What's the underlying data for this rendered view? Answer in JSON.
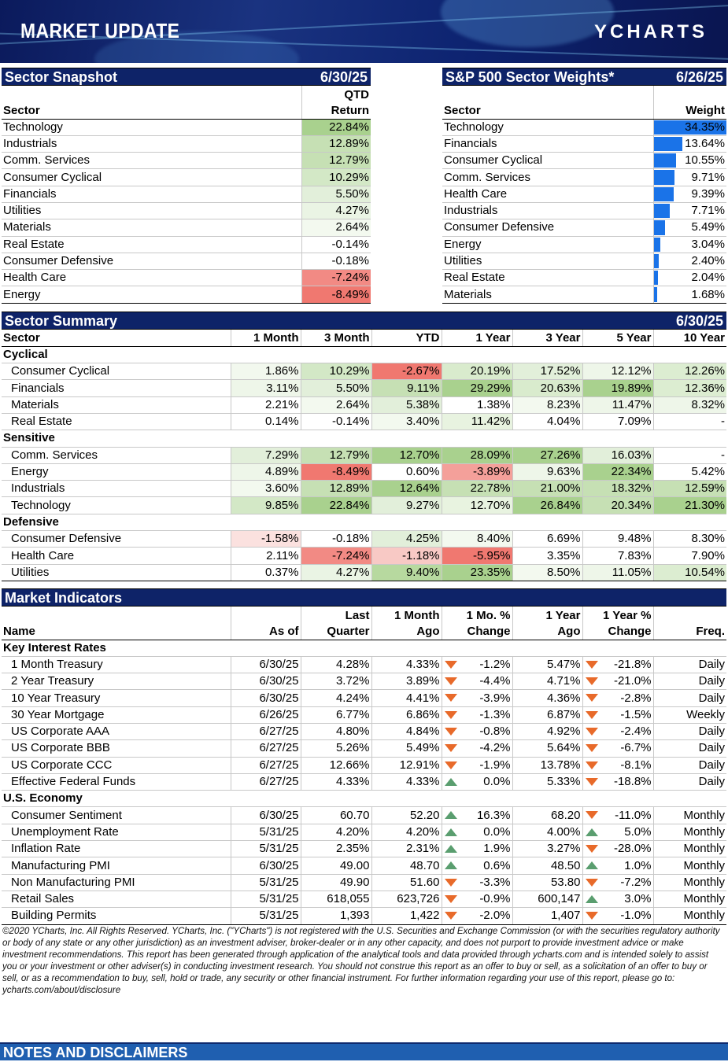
{
  "banner": {
    "title": "MARKET UPDATE",
    "logo": "YCHARTS"
  },
  "snapshot": {
    "title": "Sector Snapshot",
    "date": "6/30/25",
    "col_sector": "Sector",
    "col_return_1": "QTD",
    "col_return_2": "Return",
    "rows": [
      {
        "sector": "Technology",
        "value": "22.84%",
        "color": "#a9d18e"
      },
      {
        "sector": "Industrials",
        "value": "12.89%",
        "color": "#c6e0b4"
      },
      {
        "sector": "Comm. Services",
        "value": "12.79%",
        "color": "#c6e0b4"
      },
      {
        "sector": "Consumer Cyclical",
        "value": "10.29%",
        "color": "#d3e8c6"
      },
      {
        "sector": "Financials",
        "value": "5.50%",
        "color": "#e2efda"
      },
      {
        "sector": "Utilities",
        "value": "4.27%",
        "color": "#eaf4e4"
      },
      {
        "sector": "Materials",
        "value": "2.64%",
        "color": "#f3f9ef"
      },
      {
        "sector": "Real Estate",
        "value": "-0.14%",
        "color": "#ffffff"
      },
      {
        "sector": "Consumer Defensive",
        "value": "-0.18%",
        "color": "#ffffff"
      },
      {
        "sector": "Health Care",
        "value": "-7.24%",
        "color": "#f28a84"
      },
      {
        "sector": "Energy",
        "value": "-8.49%",
        "color": "#f07870"
      }
    ]
  },
  "weights": {
    "title": "S&P 500 Sector Weights*",
    "date": "6/26/25",
    "col_sector": "Sector",
    "col_weight": "Weight",
    "rows": [
      {
        "sector": "Technology",
        "value": "34.35%",
        "fraction": 34.35
      },
      {
        "sector": "Financials",
        "value": "13.64%",
        "fraction": 13.64
      },
      {
        "sector": "Consumer Cyclical",
        "value": "10.55%",
        "fraction": 10.55
      },
      {
        "sector": "Comm. Services",
        "value": "9.71%",
        "fraction": 9.71
      },
      {
        "sector": "Health Care",
        "value": "9.39%",
        "fraction": 9.39
      },
      {
        "sector": "Industrials",
        "value": "7.71%",
        "fraction": 7.71
      },
      {
        "sector": "Consumer Defensive",
        "value": "5.49%",
        "fraction": 5.49
      },
      {
        "sector": "Energy",
        "value": "3.04%",
        "fraction": 3.04
      },
      {
        "sector": "Utilities",
        "value": "2.40%",
        "fraction": 2.4
      },
      {
        "sector": "Real Estate",
        "value": "2.04%",
        "fraction": 2.04
      },
      {
        "sector": "Materials",
        "value": "1.68%",
        "fraction": 1.68
      }
    ]
  },
  "summary": {
    "title": "Sector Summary",
    "date": "6/30/25",
    "columns": [
      "Sector",
      "1 Month",
      "3 Month",
      "YTD",
      "1 Year",
      "3 Year",
      "5 Year",
      "10 Year"
    ],
    "groups": [
      {
        "name": "Cyclical",
        "rows": [
          {
            "sector": "Consumer Cyclical",
            "cells": [
              [
                "1.86%",
                "#f2f8ee"
              ],
              [
                "10.29%",
                "#d3e8c6"
              ],
              [
                "-2.67%",
                "#f07870"
              ],
              [
                "20.19%",
                "#d9ebcd"
              ],
              [
                "17.52%",
                "#e2efda"
              ],
              [
                "12.12%",
                "#eef6e9"
              ],
              [
                "12.26%",
                "#dcedd1"
              ]
            ]
          },
          {
            "sector": "Financials",
            "cells": [
              [
                "3.11%",
                "#eef6e9"
              ],
              [
                "5.50%",
                "#e2efda"
              ],
              [
                "9.11%",
                "#c6e0b4"
              ],
              [
                "29.29%",
                "#a9d18e"
              ],
              [
                "20.63%",
                "#d9ebcd"
              ],
              [
                "19.89%",
                "#a9d18e"
              ],
              [
                "12.36%",
                "#dcedd1"
              ]
            ]
          },
          {
            "sector": "Materials",
            "cells": [
              [
                "2.21%",
                "#ffffff"
              ],
              [
                "2.64%",
                "#f3f9ef"
              ],
              [
                "5.38%",
                "#e2efda"
              ],
              [
                "1.38%",
                "#ffffff"
              ],
              [
                "8.23%",
                "#f3f9ef"
              ],
              [
                "11.47%",
                "#eef6e9"
              ],
              [
                "8.32%",
                "#eef6e9"
              ]
            ]
          },
          {
            "sector": "Real Estate",
            "cells": [
              [
                "0.14%",
                "#ffffff"
              ],
              [
                "-0.14%",
                "#ffffff"
              ],
              [
                "3.40%",
                "#f3f9ef"
              ],
              [
                "11.42%",
                "#e8f3e0"
              ],
              [
                "4.04%",
                "#ffffff"
              ],
              [
                "7.09%",
                "#ffffff"
              ],
              [
                "-",
                "#ffffff"
              ]
            ]
          }
        ]
      },
      {
        "name": "Sensitive",
        "rows": [
          {
            "sector": "Comm. Services",
            "cells": [
              [
                "7.29%",
                "#e2efda"
              ],
              [
                "12.79%",
                "#c6e0b4"
              ],
              [
                "12.70%",
                "#a9d18e"
              ],
              [
                "28.09%",
                "#a9d18e"
              ],
              [
                "27.26%",
                "#a9d18e"
              ],
              [
                "16.03%",
                "#e2efda"
              ],
              [
                "-",
                "#ffffff"
              ]
            ]
          },
          {
            "sector": "Energy",
            "cells": [
              [
                "4.89%",
                "#eef6e9"
              ],
              [
                "-8.49%",
                "#f07870"
              ],
              [
                "0.60%",
                "#ffffff"
              ],
              [
                "-3.89%",
                "#f4a09a"
              ],
              [
                "9.63%",
                "#eef6e9"
              ],
              [
                "22.34%",
                "#a9d18e"
              ],
              [
                "5.42%",
                "#ffffff"
              ]
            ]
          },
          {
            "sector": "Industrials",
            "cells": [
              [
                "3.60%",
                "#f3f9ef"
              ],
              [
                "12.89%",
                "#c6e0b4"
              ],
              [
                "12.64%",
                "#a9d18e"
              ],
              [
                "22.78%",
                "#c6e0b4"
              ],
              [
                "21.00%",
                "#c6e0b4"
              ],
              [
                "18.32%",
                "#c6e0b4"
              ],
              [
                "12.59%",
                "#c6e0b4"
              ]
            ]
          },
          {
            "sector": "Technology",
            "cells": [
              [
                "9.85%",
                "#d3e8c6"
              ],
              [
                "22.84%",
                "#a9d18e"
              ],
              [
                "9.27%",
                "#e2efda"
              ],
              [
                "12.70%",
                "#e8f3e0"
              ],
              [
                "26.84%",
                "#a9d18e"
              ],
              [
                "20.34%",
                "#c6e0b4"
              ],
              [
                "21.30%",
                "#a9d18e"
              ]
            ]
          }
        ]
      },
      {
        "name": "Defensive",
        "rows": [
          {
            "sector": "Consumer Defensive",
            "cells": [
              [
                "-1.58%",
                "#fbe1df"
              ],
              [
                "-0.18%",
                "#ffffff"
              ],
              [
                "4.25%",
                "#e2efda"
              ],
              [
                "8.40%",
                "#f3f9ef"
              ],
              [
                "6.69%",
                "#ffffff"
              ],
              [
                "9.48%",
                "#ffffff"
              ],
              [
                "8.30%",
                "#ffffff"
              ]
            ]
          },
          {
            "sector": "Health Care",
            "cells": [
              [
                "2.11%",
                "#ffffff"
              ],
              [
                "-7.24%",
                "#f28a84"
              ],
              [
                "-1.18%",
                "#f8c9c5"
              ],
              [
                "-5.95%",
                "#f07870"
              ],
              [
                "3.35%",
                "#ffffff"
              ],
              [
                "7.83%",
                "#ffffff"
              ],
              [
                "7.90%",
                "#ffffff"
              ]
            ]
          },
          {
            "sector": "Utilities",
            "cells": [
              [
                "0.37%",
                "#ffffff"
              ],
              [
                "4.27%",
                "#eaf4e4"
              ],
              [
                "9.40%",
                "#b7d99f"
              ],
              [
                "23.35%",
                "#a9d18e"
              ],
              [
                "8.50%",
                "#f3f9ef"
              ],
              [
                "11.05%",
                "#eef6e9"
              ],
              [
                "10.54%",
                "#dcedd1"
              ]
            ]
          }
        ]
      }
    ]
  },
  "indicators": {
    "title": "Market Indicators",
    "col_name": "Name",
    "col_asof": "As of",
    "col_last_1": "Last",
    "col_last_2": "Quarter",
    "col_month_1": "1 Month",
    "col_month_2": "Ago",
    "col_mchg_1": "1 Mo. %",
    "col_mchg_2": "Change",
    "col_year_1": "1 Year",
    "col_year_2": "Ago",
    "col_ychg_1": "1 Year %",
    "col_ychg_2": "Change",
    "col_freq": "Freq.",
    "groups": [
      {
        "name": "Key Interest Rates",
        "rows": [
          {
            "name": "1 Month Treasury",
            "asof": "6/30/25",
            "last": "4.28%",
            "month": "4.33%",
            "mdir": "down",
            "mchg": "-1.2%",
            "year": "5.47%",
            "ydir": "down",
            "ychg": "-21.8%",
            "freq": "Daily"
          },
          {
            "name": "2 Year Treasury",
            "asof": "6/30/25",
            "last": "3.72%",
            "month": "3.89%",
            "mdir": "down",
            "mchg": "-4.4%",
            "year": "4.71%",
            "ydir": "down",
            "ychg": "-21.0%",
            "freq": "Daily"
          },
          {
            "name": "10 Year Treasury",
            "asof": "6/30/25",
            "last": "4.24%",
            "month": "4.41%",
            "mdir": "down",
            "mchg": "-3.9%",
            "year": "4.36%",
            "ydir": "down",
            "ychg": "-2.8%",
            "freq": "Daily"
          },
          {
            "name": "30 Year Mortgage",
            "asof": "6/26/25",
            "last": "6.77%",
            "month": "6.86%",
            "mdir": "down",
            "mchg": "-1.3%",
            "year": "6.87%",
            "ydir": "down",
            "ychg": "-1.5%",
            "freq": "Weekly"
          },
          {
            "name": "US Corporate AAA",
            "asof": "6/27/25",
            "last": "4.80%",
            "month": "4.84%",
            "mdir": "down",
            "mchg": "-0.8%",
            "year": "4.92%",
            "ydir": "down",
            "ychg": "-2.4%",
            "freq": "Daily"
          },
          {
            "name": "US Corporate BBB",
            "asof": "6/27/25",
            "last": "5.26%",
            "month": "5.49%",
            "mdir": "down",
            "mchg": "-4.2%",
            "year": "5.64%",
            "ydir": "down",
            "ychg": "-6.7%",
            "freq": "Daily"
          },
          {
            "name": "US Corporate CCC",
            "asof": "6/27/25",
            "last": "12.66%",
            "month": "12.91%",
            "mdir": "down",
            "mchg": "-1.9%",
            "year": "13.78%",
            "ydir": "down",
            "ychg": "-8.1%",
            "freq": "Daily"
          },
          {
            "name": "Effective Federal Funds",
            "asof": "6/27/25",
            "last": "4.33%",
            "month": "4.33%",
            "mdir": "up",
            "mchg": "0.0%",
            "year": "5.33%",
            "ydir": "down",
            "ychg": "-18.8%",
            "freq": "Daily"
          }
        ]
      },
      {
        "name": "U.S. Economy",
        "rows": [
          {
            "name": "Consumer Sentiment",
            "asof": "6/30/25",
            "last": "60.70",
            "month": "52.20",
            "mdir": "up",
            "mchg": "16.3%",
            "year": "68.20",
            "ydir": "down",
            "ychg": "-11.0%",
            "freq": "Monthly"
          },
          {
            "name": "Unemployment Rate",
            "asof": "5/31/25",
            "last": "4.20%",
            "month": "4.20%",
            "mdir": "up",
            "mchg": "0.0%",
            "year": "4.00%",
            "ydir": "up",
            "ychg": "5.0%",
            "freq": "Monthly"
          },
          {
            "name": "Inflation Rate",
            "asof": "5/31/25",
            "last": "2.35%",
            "month": "2.31%",
            "mdir": "up",
            "mchg": "1.9%",
            "year": "3.27%",
            "ydir": "down",
            "ychg": "-28.0%",
            "freq": "Monthly"
          },
          {
            "name": "Manufacturing PMI",
            "asof": "6/30/25",
            "last": "49.00",
            "month": "48.70",
            "mdir": "up",
            "mchg": "0.6%",
            "year": "48.50",
            "ydir": "up",
            "ychg": "1.0%",
            "freq": "Monthly"
          },
          {
            "name": "Non Manufacturing PMI",
            "asof": "5/31/25",
            "last": "49.90",
            "month": "51.60",
            "mdir": "down",
            "mchg": "-3.3%",
            "year": "53.80",
            "ydir": "down",
            "ychg": "-7.2%",
            "freq": "Monthly"
          },
          {
            "name": "Retail Sales",
            "asof": "5/31/25",
            "last": "618,055",
            "month": "623,726",
            "mdir": "down",
            "mchg": "-0.9%",
            "year": "600,147",
            "ydir": "up",
            "ychg": "3.0%",
            "freq": "Monthly"
          },
          {
            "name": "Building Permits",
            "asof": "5/31/25",
            "last": "1,393",
            "month": "1,422",
            "mdir": "down",
            "mchg": "-2.0%",
            "year": "1,407",
            "ydir": "down",
            "ychg": "-1.0%",
            "freq": "Monthly"
          }
        ]
      }
    ]
  },
  "disclaimer": "©2020 YCharts, Inc. All Rights Reserved. YCharts, Inc. (\"YCharts\") is not registered with the U.S. Securities and Exchange Commission (or with the securities regulatory authority or body of any state or any other jurisdiction) as an investment adviser, broker-dealer or in any other capacity, and does not purport to provide investment advice or make investment recommendations. This report has been generated through application of the analytical tools and data provided through ycharts.com and is intended solely to assist you or your investment or other adviser(s) in conducting investment research. You should not construe this report as an offer to buy or sell, as a solicitation of an offer to buy or sell, or as a recommendation to buy, sell, hold or trade, any security or other financial instrument. For further information regarding your use of this report, please go to: ycharts.com/about/disclosure",
  "notes": {
    "title": "NOTES AND DISCLAIMERS"
  }
}
